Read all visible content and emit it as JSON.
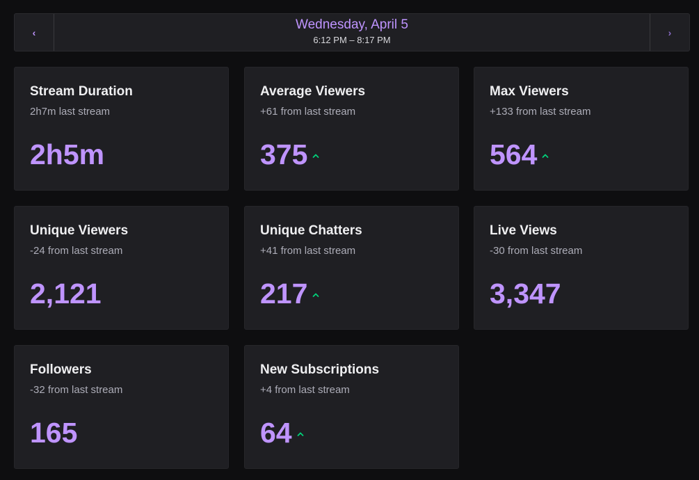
{
  "header": {
    "date": "Wednesday, April 5",
    "time_range": "6:12 PM – 8:17 PM",
    "prev_glyph": "‹",
    "next_glyph": "›"
  },
  "colors": {
    "accent": "#bf94ff",
    "trend_up": "#00d27a",
    "card_bg": "#1f1f23",
    "page_bg": "#0e0e10"
  },
  "cards": [
    {
      "title": "Stream Duration",
      "subtitle": "2h7m last stream",
      "value": "2h5m",
      "trend": "none"
    },
    {
      "title": "Average Viewers",
      "subtitle": "+61 from last stream",
      "value": "375",
      "trend": "up"
    },
    {
      "title": "Max Viewers",
      "subtitle": "+133 from last stream",
      "value": "564",
      "trend": "up"
    },
    {
      "title": "Unique Viewers",
      "subtitle": "-24 from last stream",
      "value": "2,121",
      "trend": "none"
    },
    {
      "title": "Unique Chatters",
      "subtitle": "+41 from last stream",
      "value": "217",
      "trend": "up"
    },
    {
      "title": "Live Views",
      "subtitle": "-30 from last stream",
      "value": "3,347",
      "trend": "none"
    },
    {
      "title": "Followers",
      "subtitle": "-32 from last stream",
      "value": "165",
      "trend": "none"
    },
    {
      "title": "New Subscriptions",
      "subtitle": "+4 from last stream",
      "value": "64",
      "trend": "up"
    }
  ]
}
